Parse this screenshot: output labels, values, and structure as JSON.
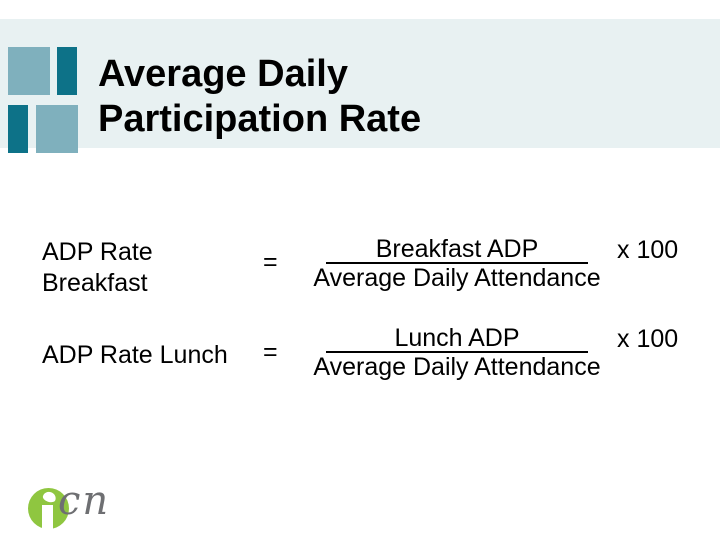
{
  "title": {
    "line1": "Average Daily",
    "line2": "Participation Rate"
  },
  "formulas": {
    "breakfast": {
      "label_line1": "ADP Rate",
      "label_line2": "Breakfast",
      "equals": "=",
      "numerator": "Breakfast ADP",
      "denominator": "Average Daily Attendance",
      "multiplier": "x 100"
    },
    "lunch": {
      "label": "ADP Rate Lunch",
      "equals": "=",
      "numerator": "Lunch ADP",
      "denominator": "Average Daily Attendance",
      "multiplier": "x 100"
    }
  },
  "logo": {
    "icon": "icn-green-circle-i",
    "text": "cn"
  },
  "colors": {
    "header_bg": "#e8f1f2",
    "square_light": "#7fb0bd",
    "square_dark": "#0d7288",
    "title_text": "#000000",
    "body_text": "#000000",
    "logo_green": "#8fc640",
    "logo_text_grey": "#6e6f72"
  }
}
